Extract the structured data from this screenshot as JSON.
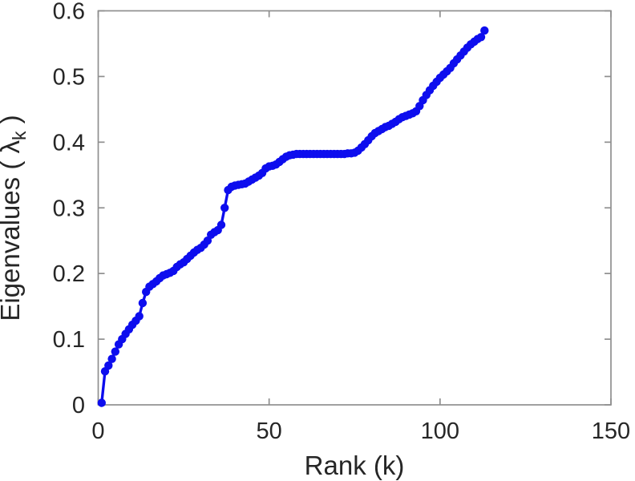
{
  "chart_data": {
    "type": "scatter",
    "line_connected": true,
    "title": "",
    "xlabel": "Rank (k)",
    "ylabel": {
      "main": "Eigenvalues ( λ",
      "sub": "k",
      "close": " )"
    },
    "xlim": [
      0,
      150
    ],
    "ylim": [
      0,
      0.6
    ],
    "xticks": [
      0,
      50,
      100,
      150
    ],
    "yticks": [
      0,
      0.1,
      0.2,
      0.3,
      0.4,
      0.5,
      0.6
    ],
    "grid": false,
    "legend_position": "none",
    "colors": {
      "marker": "#0d0dee",
      "line": "#0d0dee",
      "axis": "#8f8f8f",
      "text": "#262626",
      "background": "#ffffff"
    },
    "series": [
      {
        "name": "eigenvalues",
        "x": [
          1,
          2,
          3,
          4,
          5,
          6,
          7,
          8,
          9,
          10,
          11,
          12,
          13,
          14,
          15,
          16,
          17,
          18,
          19,
          20,
          21,
          22,
          23,
          24,
          25,
          26,
          27,
          28,
          29,
          30,
          31,
          32,
          33,
          34,
          35,
          36,
          37,
          38,
          39,
          40,
          41,
          42,
          43,
          44,
          45,
          46,
          47,
          48,
          49,
          50,
          51,
          52,
          53,
          54,
          55,
          56,
          57,
          58,
          59,
          60,
          61,
          62,
          63,
          64,
          65,
          66,
          67,
          68,
          69,
          70,
          71,
          72,
          73,
          74,
          75,
          76,
          77,
          78,
          79,
          80,
          81,
          82,
          83,
          84,
          85,
          86,
          87,
          88,
          89,
          90,
          91,
          92,
          93,
          94,
          95,
          96,
          97,
          98,
          99,
          100,
          101,
          102,
          103,
          104,
          105,
          106,
          107,
          108,
          109,
          110,
          111,
          112,
          113
        ],
        "y": [
          0.003,
          0.051,
          0.06,
          0.07,
          0.081,
          0.092,
          0.1,
          0.108,
          0.115,
          0.122,
          0.128,
          0.135,
          0.155,
          0.172,
          0.18,
          0.184,
          0.188,
          0.193,
          0.197,
          0.199,
          0.201,
          0.204,
          0.21,
          0.214,
          0.217,
          0.222,
          0.227,
          0.232,
          0.236,
          0.239,
          0.244,
          0.25,
          0.259,
          0.263,
          0.266,
          0.274,
          0.3,
          0.327,
          0.332,
          0.334,
          0.335,
          0.336,
          0.337,
          0.34,
          0.343,
          0.346,
          0.349,
          0.353,
          0.36,
          0.363,
          0.364,
          0.366,
          0.37,
          0.374,
          0.378,
          0.38,
          0.381,
          0.382,
          0.382,
          0.382,
          0.382,
          0.382,
          0.382,
          0.382,
          0.382,
          0.382,
          0.382,
          0.382,
          0.382,
          0.382,
          0.382,
          0.382,
          0.383,
          0.383,
          0.384,
          0.387,
          0.392,
          0.397,
          0.403,
          0.409,
          0.414,
          0.417,
          0.42,
          0.423,
          0.425,
          0.428,
          0.431,
          0.435,
          0.438,
          0.44,
          0.442,
          0.444,
          0.447,
          0.455,
          0.464,
          0.472,
          0.479,
          0.486,
          0.492,
          0.498,
          0.503,
          0.508,
          0.513,
          0.52,
          0.526,
          0.532,
          0.538,
          0.544,
          0.549,
          0.553,
          0.557,
          0.56,
          0.57
        ]
      }
    ]
  }
}
